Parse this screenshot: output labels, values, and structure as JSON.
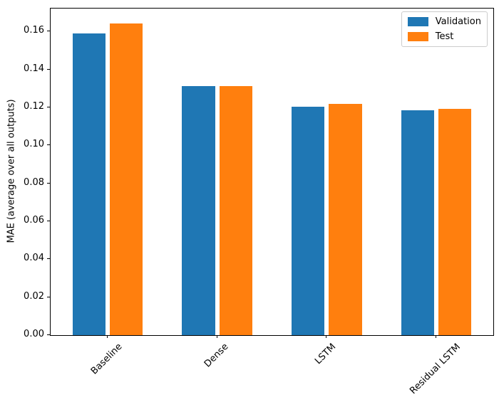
{
  "chart_data": {
    "type": "bar",
    "title": "",
    "categories": [
      "Baseline",
      "Dense",
      "LSTM",
      "Residual LSTM"
    ],
    "series": [
      {
        "name": "Validation",
        "color": "#1f77b4",
        "values": [
          0.1589,
          0.1314,
          0.1204,
          0.1186
        ]
      },
      {
        "name": "Test",
        "color": "#ff7f0e",
        "values": [
          0.1642,
          0.1312,
          0.122,
          0.1192
        ]
      }
    ],
    "xlabel": "",
    "ylabel": "MAE (average over all outputs)",
    "ylim": [
      0,
      0.1721
    ],
    "xlim": [
      -0.52,
      3.52
    ],
    "yticks": [
      0.0,
      0.02,
      0.04,
      0.06,
      0.08,
      0.1,
      0.12,
      0.14,
      0.16
    ],
    "ytick_decimals": 2,
    "bar_width": 0.3,
    "bar_offset": 0.17,
    "x_tick_rotation": 45,
    "grid": false,
    "legend_position": "upper right"
  }
}
